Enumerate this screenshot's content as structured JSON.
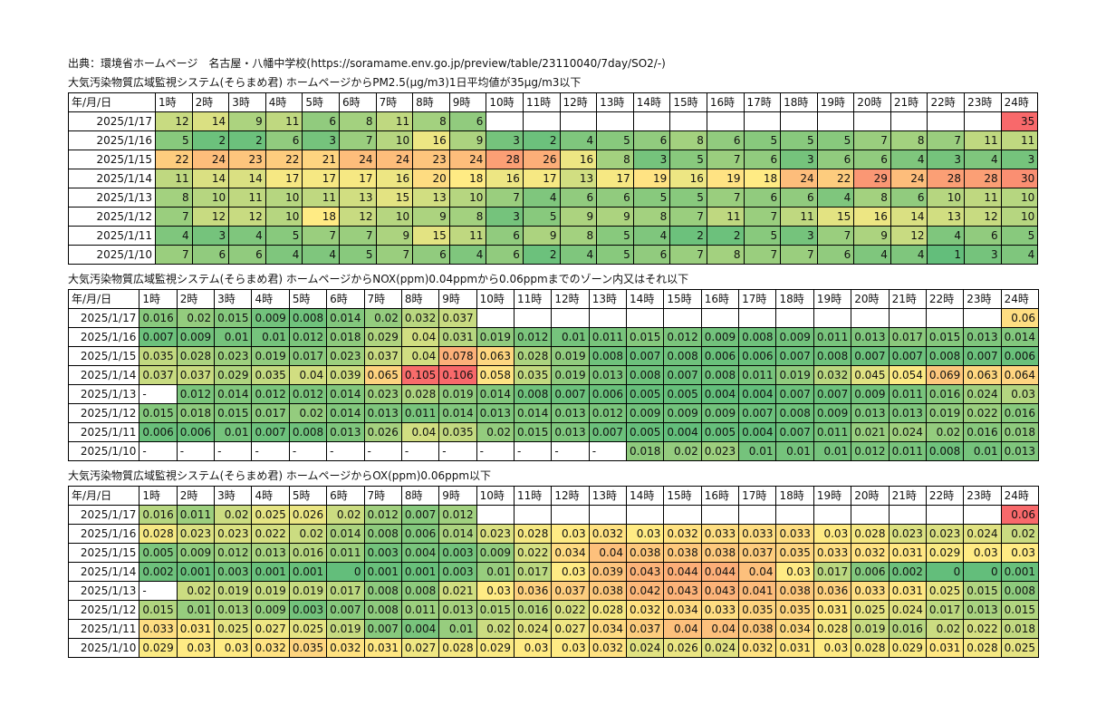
{
  "source": "出典：環境省ホームページ　名古屋・八幡中学校(https://soramame.env.go.jp/preview/table/23110040/7day/SO2/-)",
  "header_first": "年/月/日",
  "hours": [
    "1時",
    "2時",
    "3時",
    "4時",
    "5時",
    "6時",
    "7時",
    "8時",
    "9時",
    "10時",
    "11時",
    "12時",
    "13時",
    "14時",
    "15時",
    "16時",
    "17時",
    "18時",
    "19時",
    "20時",
    "21時",
    "22時",
    "23時",
    "24時"
  ],
  "tables": [
    {
      "caption": "大気汚染物質広域監視システム(そらまめ君) ホームページからPM2.5(μg/m3)1日平均値が35μg/m3以下",
      "min": 1,
      "max": 35,
      "rows": [
        {
          "date": "2025/1/17",
          "values": [
            "12",
            "14",
            "9",
            "11",
            "6",
            "8",
            "11",
            "8",
            "6",
            "",
            "",
            "",
            "",
            "",
            "",
            "",
            "",
            "",
            "",
            "",
            "",
            "",
            "",
            "35"
          ]
        },
        {
          "date": "2025/1/16",
          "values": [
            "5",
            "2",
            "2",
            "6",
            "3",
            "7",
            "10",
            "16",
            "9",
            "3",
            "2",
            "4",
            "5",
            "6",
            "8",
            "6",
            "5",
            "5",
            "5",
            "7",
            "8",
            "7",
            "11",
            "11"
          ]
        },
        {
          "date": "2025/1/15",
          "values": [
            "22",
            "24",
            "23",
            "22",
            "21",
            "24",
            "24",
            "23",
            "24",
            "28",
            "26",
            "16",
            "8",
            "3",
            "5",
            "7",
            "6",
            "3",
            "6",
            "6",
            "4",
            "3",
            "4",
            "3"
          ]
        },
        {
          "date": "2025/1/14",
          "values": [
            "11",
            "14",
            "14",
            "17",
            "17",
            "17",
            "16",
            "20",
            "18",
            "16",
            "17",
            "13",
            "17",
            "19",
            "16",
            "19",
            "18",
            "24",
            "22",
            "29",
            "24",
            "28",
            "28",
            "30"
          ]
        },
        {
          "date": "2025/1/13",
          "values": [
            "8",
            "10",
            "11",
            "10",
            "11",
            "13",
            "15",
            "13",
            "10",
            "7",
            "4",
            "6",
            "6",
            "5",
            "5",
            "7",
            "6",
            "6",
            "4",
            "8",
            "6",
            "10",
            "11",
            "10"
          ]
        },
        {
          "date": "2025/1/12",
          "values": [
            "7",
            "12",
            "12",
            "10",
            "18",
            "12",
            "10",
            "9",
            "8",
            "3",
            "5",
            "9",
            "9",
            "8",
            "7",
            "11",
            "7",
            "11",
            "15",
            "16",
            "14",
            "13",
            "12",
            "10"
          ]
        },
        {
          "date": "2025/1/11",
          "values": [
            "4",
            "3",
            "4",
            "5",
            "7",
            "7",
            "9",
            "15",
            "11",
            "6",
            "9",
            "8",
            "5",
            "4",
            "2",
            "2",
            "5",
            "3",
            "7",
            "9",
            "12",
            "4",
            "6",
            "5"
          ]
        },
        {
          "date": "2025/1/10",
          "values": [
            "7",
            "6",
            "6",
            "4",
            "4",
            "5",
            "7",
            "6",
            "4",
            "6",
            "2",
            "4",
            "5",
            "6",
            "7",
            "8",
            "7",
            "7",
            "6",
            "4",
            "4",
            "1",
            "3",
            "4"
          ]
        }
      ]
    },
    {
      "caption": "大気汚染物質広域監視システム(そらまめ君) ホームページからNOX(ppm)0.04ppmから0.06ppmまでのゾーン内又はそれ以下",
      "min": 0.004,
      "max": 0.106,
      "rows": [
        {
          "date": "2025/1/17",
          "values": [
            "0.016",
            "0.02",
            "0.015",
            "0.009",
            "0.008",
            "0.014",
            "0.02",
            "0.032",
            "0.037",
            "",
            "",
            "",
            "",
            "",
            "",
            "",
            "",
            "",
            "",
            "",
            "",
            "",
            "",
            "0.06"
          ]
        },
        {
          "date": "2025/1/16",
          "values": [
            "0.007",
            "0.009",
            "0.01",
            "0.01",
            "0.012",
            "0.018",
            "0.029",
            "0.04",
            "0.031",
            "0.019",
            "0.012",
            "0.01",
            "0.011",
            "0.015",
            "0.012",
            "0.009",
            "0.008",
            "0.009",
            "0.011",
            "0.013",
            "0.017",
            "0.015",
            "0.013",
            "0.014"
          ]
        },
        {
          "date": "2025/1/15",
          "values": [
            "0.035",
            "0.028",
            "0.023",
            "0.019",
            "0.017",
            "0.023",
            "0.037",
            "0.04",
            "0.078",
            "0.063",
            "0.028",
            "0.019",
            "0.008",
            "0.007",
            "0.008",
            "0.006",
            "0.006",
            "0.007",
            "0.008",
            "0.007",
            "0.007",
            "0.008",
            "0.007",
            "0.006"
          ]
        },
        {
          "date": "2025/1/14",
          "values": [
            "0.037",
            "0.037",
            "0.029",
            "0.035",
            "0.04",
            "0.039",
            "0.065",
            "0.105",
            "0.106",
            "0.058",
            "0.035",
            "0.019",
            "0.013",
            "0.008",
            "0.007",
            "0.008",
            "0.011",
            "0.019",
            "0.032",
            "0.045",
            "0.054",
            "0.069",
            "0.063",
            "0.064"
          ]
        },
        {
          "date": "2025/1/13",
          "values": [
            "-",
            "0.012",
            "0.014",
            "0.012",
            "0.012",
            "0.014",
            "0.023",
            "0.028",
            "0.019",
            "0.014",
            "0.008",
            "0.007",
            "0.006",
            "0.005",
            "0.005",
            "0.004",
            "0.004",
            "0.007",
            "0.007",
            "0.009",
            "0.011",
            "0.016",
            "0.024",
            "0.03"
          ]
        },
        {
          "date": "2025/1/12",
          "values": [
            "0.015",
            "0.018",
            "0.015",
            "0.017",
            "0.02",
            "0.014",
            "0.013",
            "0.011",
            "0.014",
            "0.013",
            "0.014",
            "0.013",
            "0.012",
            "0.009",
            "0.009",
            "0.009",
            "0.007",
            "0.008",
            "0.009",
            "0.013",
            "0.013",
            "0.019",
            "0.022",
            "0.016"
          ]
        },
        {
          "date": "2025/1/11",
          "values": [
            "0.006",
            "0.006",
            "0.01",
            "0.007",
            "0.008",
            "0.013",
            "0.026",
            "0.04",
            "0.035",
            "0.02",
            "0.015",
            "0.013",
            "0.007",
            "0.005",
            "0.004",
            "0.005",
            "0.004",
            "0.007",
            "0.011",
            "0.021",
            "0.024",
            "0.02",
            "0.016",
            "0.018"
          ]
        },
        {
          "date": "2025/1/10",
          "values": [
            "-",
            "-",
            "-",
            "-",
            "-",
            "-",
            "-",
            "-",
            "-",
            "-",
            "-",
            "-",
            "-",
            "0.018",
            "0.02",
            "0.023",
            "0.01",
            "0.01",
            "0.01",
            "0.012",
            "0.011",
            "0.008",
            "0.01",
            "0.013"
          ]
        }
      ]
    },
    {
      "caption": "大気汚染物質広域監視システム(そらまめ君) ホームページからOX(ppm)0.06ppm以下",
      "min": 0,
      "max": 0.06,
      "rows": [
        {
          "date": "2025/1/17",
          "values": [
            "0.016",
            "0.011",
            "0.02",
            "0.025",
            "0.026",
            "0.02",
            "0.012",
            "0.007",
            "0.012",
            "",
            "",
            "",
            "",
            "",
            "",
            "",
            "",
            "",
            "",
            "",
            "",
            "",
            "",
            "0.06"
          ]
        },
        {
          "date": "2025/1/16",
          "values": [
            "0.028",
            "0.023",
            "0.023",
            "0.022",
            "0.02",
            "0.014",
            "0.008",
            "0.006",
            "0.014",
            "0.023",
            "0.028",
            "0.03",
            "0.032",
            "0.03",
            "0.032",
            "0.033",
            "0.033",
            "0.033",
            "0.03",
            "0.028",
            "0.023",
            "0.023",
            "0.024",
            "0.02"
          ]
        },
        {
          "date": "2025/1/15",
          "values": [
            "0.005",
            "0.009",
            "0.012",
            "0.013",
            "0.016",
            "0.011",
            "0.003",
            "0.004",
            "0.003",
            "0.009",
            "0.022",
            "0.034",
            "0.04",
            "0.038",
            "0.038",
            "0.038",
            "0.037",
            "0.035",
            "0.033",
            "0.032",
            "0.031",
            "0.029",
            "0.03",
            "0.03"
          ]
        },
        {
          "date": "2025/1/14",
          "values": [
            "0.002",
            "0.001",
            "0.003",
            "0.001",
            "0.001",
            "0",
            "0.001",
            "0.001",
            "0.003",
            "0.01",
            "0.017",
            "0.03",
            "0.039",
            "0.043",
            "0.044",
            "0.044",
            "0.04",
            "0.03",
            "0.017",
            "0.006",
            "0.002",
            "0",
            "0",
            "0.001"
          ]
        },
        {
          "date": "2025/1/13",
          "values": [
            "-",
            "0.02",
            "0.019",
            "0.019",
            "0.019",
            "0.017",
            "0.008",
            "0.008",
            "0.021",
            "0.03",
            "0.036",
            "0.037",
            "0.038",
            "0.042",
            "0.043",
            "0.043",
            "0.041",
            "0.038",
            "0.036",
            "0.033",
            "0.031",
            "0.025",
            "0.015",
            "0.008"
          ]
        },
        {
          "date": "2025/1/12",
          "values": [
            "0.015",
            "0.01",
            "0.013",
            "0.009",
            "0.003",
            "0.007",
            "0.008",
            "0.011",
            "0.013",
            "0.015",
            "0.016",
            "0.022",
            "0.028",
            "0.032",
            "0.034",
            "0.033",
            "0.035",
            "0.035",
            "0.031",
            "0.025",
            "0.024",
            "0.017",
            "0.013",
            "0.015"
          ]
        },
        {
          "date": "2025/1/11",
          "values": [
            "0.033",
            "0.031",
            "0.025",
            "0.027",
            "0.025",
            "0.019",
            "0.007",
            "0.004",
            "0.01",
            "0.02",
            "0.024",
            "0.027",
            "0.034",
            "0.037",
            "0.04",
            "0.04",
            "0.038",
            "0.034",
            "0.028",
            "0.019",
            "0.016",
            "0.02",
            "0.022",
            "0.018"
          ]
        },
        {
          "date": "2025/1/10",
          "values": [
            "0.029",
            "0.03",
            "0.03",
            "0.032",
            "0.035",
            "0.032",
            "0.031",
            "0.027",
            "0.028",
            "0.029",
            "0.03",
            "0.03",
            "0.032",
            "0.024",
            "0.026",
            "0.024",
            "0.032",
            "0.031",
            "0.03",
            "0.028",
            "0.029",
            "0.031",
            "0.028",
            "0.025"
          ]
        }
      ]
    }
  ]
}
